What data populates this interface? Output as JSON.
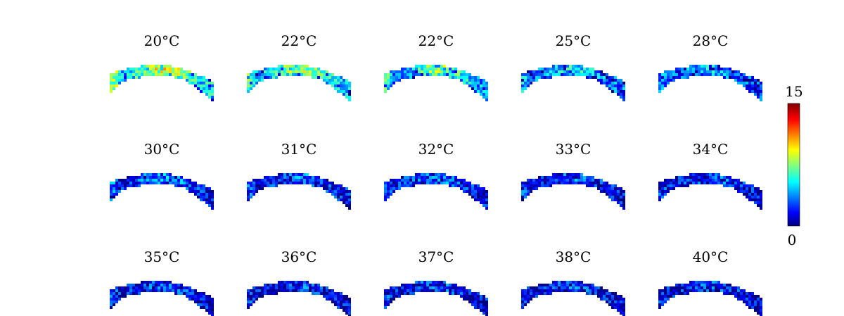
{
  "chart_data": {
    "type": "heatmap",
    "colormap": "jet",
    "panels": [
      {
        "title": "20°C",
        "level": 0.62
      },
      {
        "title": "22°C",
        "level": 0.55
      },
      {
        "title": "22°C",
        "level": 0.5
      },
      {
        "title": "25°C",
        "level": 0.38
      },
      {
        "title": "28°C",
        "level": 0.32
      },
      {
        "title": "30°C",
        "level": 0.26
      },
      {
        "title": "31°C",
        "level": 0.23
      },
      {
        "title": "32°C",
        "level": 0.22
      },
      {
        "title": "33°C",
        "level": 0.21
      },
      {
        "title": "34°C",
        "level": 0.21
      },
      {
        "title": "35°C",
        "level": 0.2
      },
      {
        "title": "36°C",
        "level": 0.19
      },
      {
        "title": "37°C",
        "level": 0.19
      },
      {
        "title": "38°C",
        "level": 0.19
      },
      {
        "title": "40°C",
        "level": 0.18
      }
    ],
    "colorbar": {
      "min_label": "0",
      "max_label": "15",
      "range": [
        0,
        15
      ]
    }
  }
}
